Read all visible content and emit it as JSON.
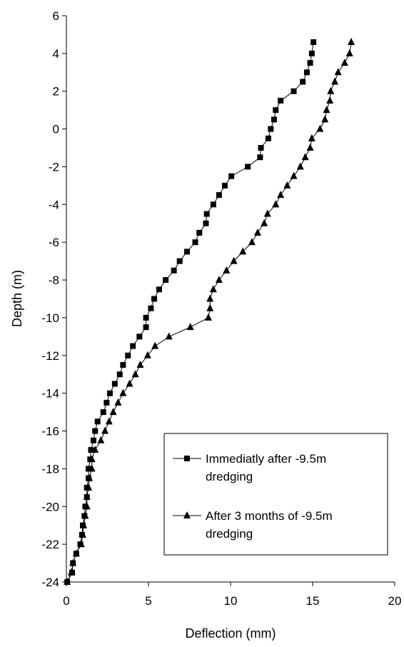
{
  "chart_data": {
    "type": "line",
    "title": "",
    "xlabel": "Deflection (mm)",
    "ylabel": "Depth (m)",
    "xlim": [
      0,
      20
    ],
    "ylim": [
      -24,
      6
    ],
    "x_ticks": [
      "0",
      "5",
      "10",
      "15",
      "20"
    ],
    "y_ticks": [
      "6",
      "4",
      "2",
      "0",
      "-2",
      "-4",
      "-6",
      "-8",
      "-10",
      "-12",
      "-14",
      "-16",
      "-18",
      "-20",
      "-22",
      "-24"
    ],
    "grid": false,
    "legend_position": "bottom-right",
    "series": [
      {
        "name": "Immediatly after -9.5m dredging",
        "name_lines": [
          "Immediatly after -9.5m",
          "dredging"
        ],
        "marker": "square",
        "color": "#000000",
        "points": [
          [
            0.05,
            -24.0
          ],
          [
            0.35,
            -23.5
          ],
          [
            0.4,
            -23.0
          ],
          [
            0.6,
            -22.5
          ],
          [
            0.85,
            -22.0
          ],
          [
            0.95,
            -21.5
          ],
          [
            1.0,
            -21.0
          ],
          [
            1.1,
            -20.5
          ],
          [
            1.15,
            -20.0
          ],
          [
            1.25,
            -19.5
          ],
          [
            1.25,
            -19.0
          ],
          [
            1.35,
            -18.5
          ],
          [
            1.35,
            -18.0
          ],
          [
            1.45,
            -17.5
          ],
          [
            1.5,
            -17.0
          ],
          [
            1.65,
            -16.5
          ],
          [
            1.75,
            -16.0
          ],
          [
            1.9,
            -15.5
          ],
          [
            2.25,
            -15.0
          ],
          [
            2.45,
            -14.5
          ],
          [
            2.65,
            -14.0
          ],
          [
            2.95,
            -13.5
          ],
          [
            3.25,
            -13.0
          ],
          [
            3.45,
            -12.5
          ],
          [
            3.75,
            -12.0
          ],
          [
            4.05,
            -11.5
          ],
          [
            4.45,
            -11.0
          ],
          [
            4.85,
            -10.5
          ],
          [
            4.85,
            -10.0
          ],
          [
            5.15,
            -9.5
          ],
          [
            5.35,
            -9.0
          ],
          [
            5.65,
            -8.5
          ],
          [
            6.05,
            -8.0
          ],
          [
            6.55,
            -7.5
          ],
          [
            6.9,
            -7.0
          ],
          [
            7.35,
            -6.5
          ],
          [
            7.85,
            -6.0
          ],
          [
            8.1,
            -5.5
          ],
          [
            8.5,
            -5.0
          ],
          [
            8.55,
            -4.5
          ],
          [
            8.95,
            -4.0
          ],
          [
            9.3,
            -3.5
          ],
          [
            9.65,
            -3.0
          ],
          [
            10.05,
            -2.5
          ],
          [
            11.05,
            -2.0
          ],
          [
            11.8,
            -1.5
          ],
          [
            11.85,
            -1.0
          ],
          [
            12.3,
            -0.5
          ],
          [
            12.45,
            0.0
          ],
          [
            12.65,
            0.5
          ],
          [
            12.75,
            1.0
          ],
          [
            13.05,
            1.5
          ],
          [
            13.85,
            2.0
          ],
          [
            14.4,
            2.5
          ],
          [
            14.65,
            3.0
          ],
          [
            14.85,
            3.5
          ],
          [
            14.95,
            4.0
          ],
          [
            15.05,
            4.6
          ]
        ]
      },
      {
        "name": "After 3 months of -9.5m dredging",
        "name_lines": [
          "After 3 months of -9.5m",
          "dredging"
        ],
        "marker": "triangle",
        "color": "#000000",
        "points": [
          [
            0.05,
            -24.0
          ],
          [
            0.3,
            -23.5
          ],
          [
            0.4,
            -23.0
          ],
          [
            0.6,
            -22.5
          ],
          [
            0.9,
            -22.0
          ],
          [
            1.0,
            -21.5
          ],
          [
            1.05,
            -21.0
          ],
          [
            1.15,
            -20.5
          ],
          [
            1.25,
            -20.0
          ],
          [
            1.25,
            -19.5
          ],
          [
            1.35,
            -19.0
          ],
          [
            1.4,
            -18.5
          ],
          [
            1.55,
            -18.0
          ],
          [
            1.55,
            -17.5
          ],
          [
            1.75,
            -17.0
          ],
          [
            2.1,
            -16.5
          ],
          [
            2.35,
            -16.0
          ],
          [
            2.6,
            -15.5
          ],
          [
            2.85,
            -15.0
          ],
          [
            3.15,
            -14.5
          ],
          [
            3.45,
            -14.0
          ],
          [
            3.85,
            -13.5
          ],
          [
            4.2,
            -13.0
          ],
          [
            4.5,
            -12.5
          ],
          [
            4.95,
            -12.0
          ],
          [
            5.4,
            -11.5
          ],
          [
            6.25,
            -11.0
          ],
          [
            7.55,
            -10.5
          ],
          [
            8.65,
            -10.0
          ],
          [
            8.75,
            -9.5
          ],
          [
            8.75,
            -9.0
          ],
          [
            8.95,
            -8.5
          ],
          [
            9.3,
            -8.0
          ],
          [
            9.75,
            -7.5
          ],
          [
            10.2,
            -7.0
          ],
          [
            10.75,
            -6.5
          ],
          [
            11.3,
            -6.0
          ],
          [
            11.65,
            -5.5
          ],
          [
            12.05,
            -5.0
          ],
          [
            12.25,
            -4.5
          ],
          [
            12.75,
            -4.0
          ],
          [
            13.05,
            -3.5
          ],
          [
            13.45,
            -3.0
          ],
          [
            13.85,
            -2.5
          ],
          [
            14.25,
            -2.0
          ],
          [
            14.55,
            -1.5
          ],
          [
            14.85,
            -1.0
          ],
          [
            14.95,
            -0.5
          ],
          [
            15.45,
            0.0
          ],
          [
            15.75,
            0.5
          ],
          [
            15.85,
            1.0
          ],
          [
            16.05,
            1.5
          ],
          [
            16.1,
            2.0
          ],
          [
            16.35,
            2.5
          ],
          [
            16.55,
            3.0
          ],
          [
            16.95,
            3.5
          ],
          [
            17.25,
            4.0
          ],
          [
            17.35,
            4.6
          ]
        ]
      }
    ]
  }
}
